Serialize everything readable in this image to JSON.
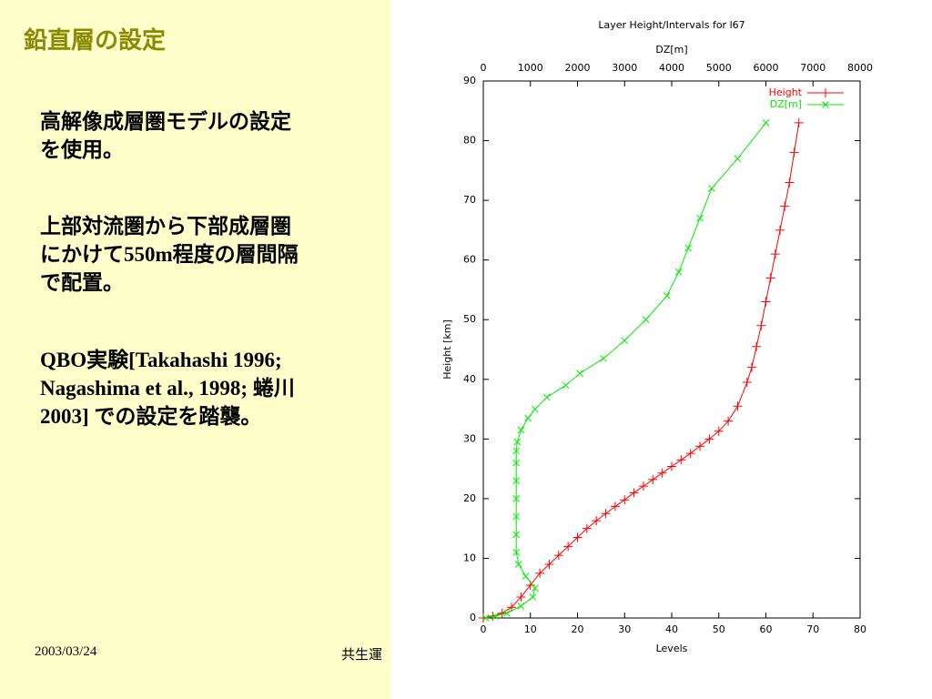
{
  "slide": {
    "title": "鉛直層の設定",
    "paragraphs": [
      [
        "高解像成層圏モデルの設定",
        "を使用。"
      ],
      [
        "上部対流圏から下部成層圏",
        "にかけて550m程度の層間隔",
        "で配置。"
      ],
      [
        "QBO実験[Takahashi 1996;",
        "Nagashima et al., 1998; 蜷川",
        "2003] での設定を踏襲。"
      ]
    ],
    "footer_date": "2003/03/24",
    "footer_center": "共生運"
  },
  "chart_data": {
    "type": "line",
    "title": "Layer Height/Intervals for l67",
    "xlabel": "Levels",
    "x2label": "DZ[m]",
    "ylabel": "Height [km]",
    "xlim": [
      0,
      80
    ],
    "xticks": [
      0,
      10,
      20,
      30,
      40,
      50,
      60,
      70,
      80
    ],
    "x2lim": [
      0,
      8000
    ],
    "x2ticks": [
      0,
      1000,
      2000,
      3000,
      4000,
      5000,
      6000,
      7000,
      8000
    ],
    "ylim": [
      0,
      90
    ],
    "yticks": [
      0,
      10,
      20,
      30,
      40,
      50,
      60,
      70,
      80,
      90
    ],
    "legend": "top-right",
    "series": [
      {
        "name": "Height",
        "color": "#ff0000",
        "marker": "plus",
        "x": [
          0,
          2,
          4,
          6,
          8,
          10,
          12,
          14,
          16,
          18,
          20,
          22,
          24,
          26,
          28,
          30,
          32,
          34,
          36,
          38,
          40,
          42,
          44,
          46,
          48,
          50,
          52,
          54,
          56,
          57,
          58,
          59,
          60,
          61,
          62,
          63,
          64,
          65,
          66,
          67
        ],
        "values": [
          0,
          0.3,
          0.8,
          1.8,
          3.5,
          5.5,
          7.5,
          9,
          10.5,
          12,
          13.5,
          15,
          16.3,
          17.5,
          18.7,
          19.8,
          21,
          22.1,
          23.2,
          24.3,
          25.4,
          26.5,
          27.6,
          28.8,
          30,
          31.3,
          33,
          35.5,
          39.5,
          42,
          45.5,
          49,
          53,
          57,
          61,
          65,
          69,
          73,
          78,
          83
        ]
      },
      {
        "name": "DZ[m]",
        "color": "#00ee00",
        "marker": "cross",
        "xaxis": "x2",
        "x": [
          50,
          250,
          500,
          800,
          1050,
          1100,
          900,
          750,
          700,
          700,
          700,
          700,
          700,
          700,
          700,
          720,
          800,
          950,
          1100,
          1350,
          1750,
          2050,
          2550,
          3000,
          3450,
          3900,
          4150,
          4350,
          4600,
          4850,
          5400,
          6000
        ],
        "values": [
          0,
          0.3,
          0.8,
          2,
          3.5,
          5,
          7,
          9,
          11,
          14,
          17,
          20,
          23,
          26,
          28,
          29.5,
          31.5,
          33.5,
          35,
          37,
          39,
          41,
          43.5,
          46.5,
          50,
          54,
          58,
          62,
          67,
          72,
          77,
          83
        ]
      }
    ]
  }
}
